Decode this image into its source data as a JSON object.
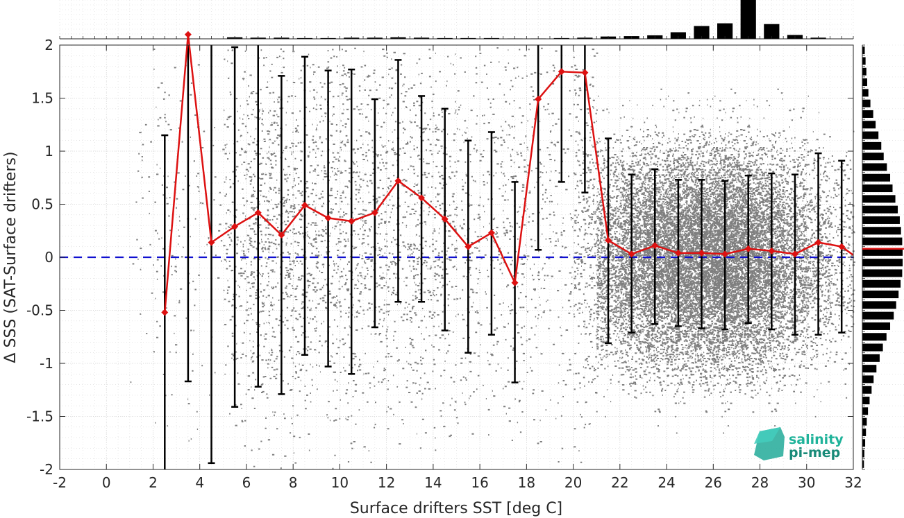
{
  "chart_data": {
    "type": "scatter",
    "xlabel": "Surface drifters SST [deg C]",
    "ylabel": "Δ SSS (SAT-Surface drifters)",
    "xlim": [
      -2,
      32
    ],
    "ylim": [
      -2,
      2
    ],
    "xticks": [
      "-2",
      "0",
      "2",
      "4",
      "6",
      "8",
      "10",
      "12",
      "14",
      "16",
      "18",
      "20",
      "22",
      "24",
      "26",
      "28",
      "30",
      "32"
    ],
    "yticks": [
      "2",
      "1.5",
      "1",
      "0.5",
      "0",
      "-0.5",
      "-1",
      "-1.5",
      "-2"
    ],
    "grid": "on",
    "zero_line": {
      "y": 0,
      "color": "#1010d0",
      "style": "dashed"
    },
    "mean_series": {
      "color": "#dd1111",
      "marker": "diamond",
      "x": [
        2.5,
        3.5,
        4.5,
        5.5,
        6.5,
        7.5,
        8.5,
        9.5,
        10.5,
        11.5,
        12.5,
        13.5,
        14.5,
        15.5,
        16.5,
        17.5,
        18.5,
        19.5,
        20.5,
        21.5,
        22.5,
        23.5,
        24.5,
        25.5,
        26.5,
        27.5,
        28.5,
        29.5,
        30.5,
        31.5,
        32.0
      ],
      "y": [
        -0.52,
        2.1,
        0.14,
        0.29,
        0.42,
        0.21,
        0.49,
        0.37,
        0.34,
        0.42,
        0.72,
        0.56,
        0.36,
        0.1,
        0.23,
        -0.24,
        1.49,
        1.75,
        1.74,
        0.16,
        0.03,
        0.11,
        0.04,
        0.04,
        0.03,
        0.08,
        0.06,
        0.03,
        0.14,
        0.1,
        0.02
      ]
    },
    "error_bars": {
      "color": "#000000",
      "x": [
        2.5,
        3.5,
        4.5,
        5.5,
        6.5,
        7.5,
        8.5,
        9.5,
        10.5,
        11.5,
        12.5,
        13.5,
        14.5,
        15.5,
        16.5,
        17.5,
        18.5,
        19.5,
        20.5,
        21.5,
        22.5,
        23.5,
        24.5,
        25.5,
        26.5,
        27.5,
        28.5,
        29.5,
        30.5,
        31.5
      ],
      "lower": [
        -2.2,
        -1.17,
        -1.94,
        -1.41,
        -1.22,
        -1.29,
        -0.92,
        -1.03,
        -1.1,
        -0.66,
        -0.42,
        -0.42,
        -0.69,
        -0.9,
        -0.73,
        -1.18,
        0.07,
        0.71,
        0.61,
        -0.81,
        -0.71,
        -0.63,
        -0.65,
        -0.67,
        -0.68,
        -0.62,
        -0.68,
        -0.73,
        -0.73,
        -0.71
      ],
      "upper": [
        1.15,
        2.3,
        2.3,
        1.98,
        2.1,
        1.71,
        1.89,
        1.76,
        1.77,
        1.49,
        1.86,
        1.52,
        1.4,
        1.1,
        1.18,
        0.71,
        2.3,
        2.3,
        2.3,
        1.12,
        0.78,
        0.83,
        0.73,
        0.73,
        0.72,
        0.77,
        0.79,
        0.78,
        0.98,
        0.91
      ]
    },
    "scatter_color": "#7f7f7f",
    "scatter_density": [
      0,
      0,
      0,
      0.01,
      0.03,
      0.02,
      0.01,
      0.08,
      0.13,
      0.12,
      0.11,
      0.1,
      0.11,
      0.1,
      0.09,
      0.1,
      0.09,
      0.06,
      0.05,
      0.07,
      0.05,
      0.04,
      0.15,
      0.35,
      0.55,
      0.75,
      0.85,
      0.9,
      1.0,
      0.85,
      0.6,
      0.35,
      0.2,
      0.1
    ],
    "top_histogram": {
      "bin_centers": [
        -1.5,
        -0.5,
        0.5,
        1.5,
        2.5,
        3.5,
        4.5,
        5.5,
        6.5,
        7.5,
        8.5,
        9.5,
        10.5,
        11.5,
        12.5,
        13.5,
        14.5,
        15.5,
        16.5,
        17.5,
        18.5,
        19.5,
        20.5,
        21.5,
        22.5,
        23.5,
        24.5,
        25.5,
        26.5,
        27.5,
        28.5,
        29.5,
        30.5,
        31.5
      ],
      "counts": [
        0,
        0,
        0,
        0,
        0.002,
        0.002,
        0.003,
        0.04,
        0.03,
        0.03,
        0.02,
        0.02,
        0.03,
        0.03,
        0.04,
        0.03,
        0.02,
        0.02,
        0.02,
        0.01,
        0.01,
        0.02,
        0.03,
        0.06,
        0.07,
        0.09,
        0.17,
        0.33,
        0.4,
        1.0,
        0.38,
        0.1,
        0.03,
        0.005
      ]
    },
    "right_histogram": {
      "bin_centers": [
        1.95,
        1.85,
        1.75,
        1.65,
        1.55,
        1.45,
        1.35,
        1.25,
        1.15,
        1.05,
        0.95,
        0.85,
        0.75,
        0.65,
        0.55,
        0.45,
        0.35,
        0.25,
        0.15,
        0.05,
        -0.05,
        -0.15,
        -0.25,
        -0.35,
        -0.45,
        -0.55,
        -0.65,
        -0.75,
        -0.85,
        -0.95,
        -1.05,
        -1.15,
        -1.25,
        -1.35,
        -1.45,
        -1.55,
        -1.65,
        -1.75,
        -1.85,
        -1.95
      ],
      "counts": [
        0.06,
        0.08,
        0.1,
        0.12,
        0.15,
        0.2,
        0.27,
        0.33,
        0.4,
        0.47,
        0.53,
        0.61,
        0.69,
        0.75,
        0.82,
        0.88,
        0.93,
        0.96,
        0.99,
        1.0,
        1.0,
        0.99,
        0.95,
        0.9,
        0.84,
        0.78,
        0.69,
        0.6,
        0.51,
        0.43,
        0.35,
        0.28,
        0.23,
        0.18,
        0.14,
        0.11,
        0.09,
        0.07,
        0.05,
        0.04
      ],
      "mean_marker_y": 0.08,
      "mean_marker_color": "#dd1111"
    }
  },
  "logo": {
    "line1": "salinity",
    "line2": "pi-mep"
  }
}
